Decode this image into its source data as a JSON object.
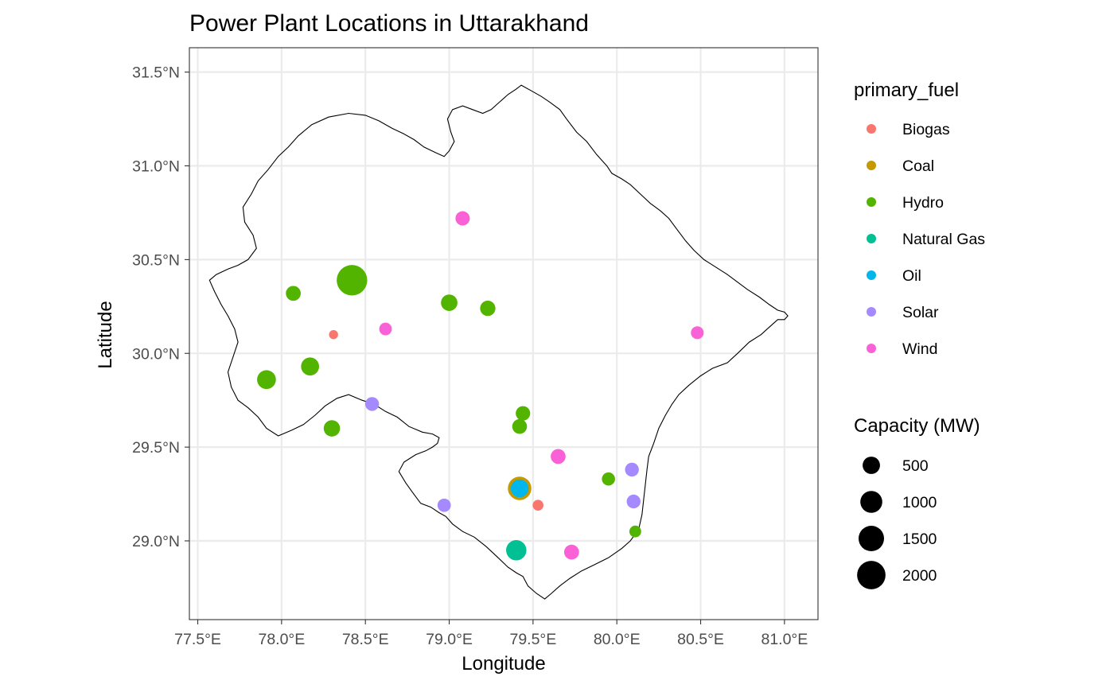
{
  "chart_data": {
    "type": "scatter",
    "title": "Power Plant Locations in Uttarakhand",
    "xlabel": "Longitude",
    "ylabel": "Latitude",
    "xlim": [
      77.45,
      81.2
    ],
    "ylim": [
      28.58,
      31.63
    ],
    "grid": true,
    "x_ticks": [
      {
        "value": 77.5,
        "label": "77.5°E"
      },
      {
        "value": 78.0,
        "label": "78.0°E"
      },
      {
        "value": 78.5,
        "label": "78.5°E"
      },
      {
        "value": 79.0,
        "label": "79.0°E"
      },
      {
        "value": 79.5,
        "label": "79.5°E"
      },
      {
        "value": 80.0,
        "label": "80.0°E"
      },
      {
        "value": 80.5,
        "label": "80.5°E"
      },
      {
        "value": 81.0,
        "label": "81.0°E"
      }
    ],
    "y_ticks": [
      {
        "value": 29.0,
        "label": "29.0°N"
      },
      {
        "value": 29.5,
        "label": "29.5°N"
      },
      {
        "value": 30.0,
        "label": "30.0°N"
      },
      {
        "value": 30.5,
        "label": "30.5°N"
      },
      {
        "value": 31.0,
        "label": "31.0°N"
      },
      {
        "value": 31.5,
        "label": "31.5°N"
      }
    ],
    "color_legend": {
      "title": "primary_fuel",
      "position": "right",
      "entries": [
        {
          "label": "Biogas",
          "color": "#F8766D"
        },
        {
          "label": "Coal",
          "color": "#C49A00"
        },
        {
          "label": "Hydro",
          "color": "#53B400"
        },
        {
          "label": "Natural Gas",
          "color": "#00C094"
        },
        {
          "label": "Oil",
          "color": "#00B6EB"
        },
        {
          "label": "Solar",
          "color": "#A58AFF"
        },
        {
          "label": "Wind",
          "color": "#FB61D7"
        }
      ]
    },
    "size_legend": {
      "title": "Capacity (MW)",
      "entries": [
        {
          "label": "500",
          "value": 500
        },
        {
          "label": "1000",
          "value": 1000
        },
        {
          "label": "1500",
          "value": 1500
        },
        {
          "label": "2000",
          "value": 2000
        }
      ]
    },
    "points": [
      {
        "lon": 78.42,
        "lat": 30.39,
        "fuel": "Hydro",
        "capacity": 2400
      },
      {
        "lon": 78.07,
        "lat": 30.32,
        "fuel": "Hydro",
        "capacity": 300
      },
      {
        "lon": 78.31,
        "lat": 30.1,
        "fuel": "Biogas",
        "capacity": 30
      },
      {
        "lon": 78.62,
        "lat": 30.13,
        "fuel": "Wind",
        "capacity": 160
      },
      {
        "lon": 79.0,
        "lat": 30.27,
        "fuel": "Hydro",
        "capacity": 420
      },
      {
        "lon": 79.23,
        "lat": 30.24,
        "fuel": "Hydro",
        "capacity": 330
      },
      {
        "lon": 79.08,
        "lat": 30.72,
        "fuel": "Wind",
        "capacity": 260
      },
      {
        "lon": 80.48,
        "lat": 30.11,
        "fuel": "Wind",
        "capacity": 170
      },
      {
        "lon": 77.91,
        "lat": 29.86,
        "fuel": "Hydro",
        "capacity": 640
      },
      {
        "lon": 78.17,
        "lat": 29.93,
        "fuel": "Hydro",
        "capacity": 560
      },
      {
        "lon": 78.54,
        "lat": 29.73,
        "fuel": "Solar",
        "capacity": 230
      },
      {
        "lon": 78.3,
        "lat": 29.6,
        "fuel": "Hydro",
        "capacity": 410
      },
      {
        "lon": 79.44,
        "lat": 29.68,
        "fuel": "Hydro",
        "capacity": 270
      },
      {
        "lon": 79.42,
        "lat": 29.61,
        "fuel": "Hydro",
        "capacity": 290
      },
      {
        "lon": 79.65,
        "lat": 29.45,
        "fuel": "Wind",
        "capacity": 300
      },
      {
        "lon": 80.09,
        "lat": 29.38,
        "fuel": "Solar",
        "capacity": 230
      },
      {
        "lon": 79.95,
        "lat": 29.33,
        "fuel": "Hydro",
        "capacity": 190
      },
      {
        "lon": 79.42,
        "lat": 29.28,
        "fuel": "Coal",
        "capacity": 1200
      },
      {
        "lon": 79.42,
        "lat": 29.28,
        "fuel": "Oil",
        "capacity": 540
      },
      {
        "lon": 79.53,
        "lat": 29.19,
        "fuel": "Biogas",
        "capacity": 80
      },
      {
        "lon": 80.1,
        "lat": 29.21,
        "fuel": "Solar",
        "capacity": 230
      },
      {
        "lon": 78.97,
        "lat": 29.19,
        "fuel": "Solar",
        "capacity": 200
      },
      {
        "lon": 80.11,
        "lat": 29.05,
        "fuel": "Hydro",
        "capacity": 120
      },
      {
        "lon": 79.4,
        "lat": 28.95,
        "fuel": "Natural Gas",
        "capacity": 800
      },
      {
        "lon": 79.73,
        "lat": 28.94,
        "fuel": "Wind",
        "capacity": 300
      }
    ],
    "boundary": [
      [
        79.43,
        31.43
      ],
      [
        79.49,
        31.4
      ],
      [
        79.55,
        31.37
      ],
      [
        79.6,
        31.34
      ],
      [
        79.66,
        31.3
      ],
      [
        79.7,
        31.25
      ],
      [
        79.76,
        31.18
      ],
      [
        79.82,
        31.13
      ],
      [
        79.88,
        31.06
      ],
      [
        79.94,
        31.0
      ],
      [
        79.97,
        30.96
      ],
      [
        80.03,
        30.93
      ],
      [
        80.08,
        30.9
      ],
      [
        80.14,
        30.85
      ],
      [
        80.2,
        30.8
      ],
      [
        80.26,
        30.76
      ],
      [
        80.31,
        30.72
      ],
      [
        80.36,
        30.66
      ],
      [
        80.41,
        30.6
      ],
      [
        80.46,
        30.55
      ],
      [
        80.52,
        30.5
      ],
      [
        80.59,
        30.46
      ],
      [
        80.66,
        30.42
      ],
      [
        80.72,
        30.38
      ],
      [
        80.78,
        30.34
      ],
      [
        80.85,
        30.3
      ],
      [
        80.91,
        30.26
      ],
      [
        80.96,
        30.23
      ],
      [
        81.0,
        30.22
      ],
      [
        81.02,
        30.2
      ],
      [
        81.0,
        30.18
      ],
      [
        80.96,
        30.18
      ],
      [
        80.91,
        30.14
      ],
      [
        80.86,
        30.1
      ],
      [
        80.79,
        30.06
      ],
      [
        80.72,
        30.0
      ],
      [
        80.66,
        29.95
      ],
      [
        80.57,
        29.92
      ],
      [
        80.5,
        29.88
      ],
      [
        80.43,
        29.83
      ],
      [
        80.37,
        29.78
      ],
      [
        80.33,
        29.73
      ],
      [
        80.29,
        29.67
      ],
      [
        80.25,
        29.6
      ],
      [
        80.22,
        29.52
      ],
      [
        80.19,
        29.45
      ],
      [
        80.18,
        29.38
      ],
      [
        80.17,
        29.3
      ],
      [
        80.16,
        29.22
      ],
      [
        80.15,
        29.14
      ],
      [
        80.13,
        29.06
      ],
      [
        80.08,
        29.0
      ],
      [
        80.03,
        28.96
      ],
      [
        79.95,
        28.91
      ],
      [
        79.86,
        28.87
      ],
      [
        79.79,
        28.84
      ],
      [
        79.72,
        28.8
      ],
      [
        79.66,
        28.76
      ],
      [
        79.61,
        28.72
      ],
      [
        79.57,
        28.69
      ],
      [
        79.52,
        28.72
      ],
      [
        79.47,
        28.76
      ],
      [
        79.44,
        28.81
      ],
      [
        79.4,
        28.83
      ],
      [
        79.35,
        28.86
      ],
      [
        79.28,
        28.92
      ],
      [
        79.22,
        28.97
      ],
      [
        79.15,
        29.02
      ],
      [
        79.08,
        29.05
      ],
      [
        79.02,
        29.09
      ],
      [
        78.98,
        29.13
      ],
      [
        78.94,
        29.15
      ],
      [
        78.89,
        29.18
      ],
      [
        78.83,
        29.2
      ],
      [
        78.78,
        29.26
      ],
      [
        78.74,
        29.31
      ],
      [
        78.7,
        29.37
      ],
      [
        78.73,
        29.42
      ],
      [
        78.8,
        29.46
      ],
      [
        78.86,
        29.48
      ],
      [
        78.9,
        29.5
      ],
      [
        78.93,
        29.52
      ],
      [
        78.94,
        29.55
      ],
      [
        78.9,
        29.57
      ],
      [
        78.84,
        29.58
      ],
      [
        78.76,
        29.61
      ],
      [
        78.69,
        29.66
      ],
      [
        78.62,
        29.69
      ],
      [
        78.55,
        29.73
      ],
      [
        78.48,
        29.75
      ],
      [
        78.4,
        29.78
      ],
      [
        78.33,
        29.76
      ],
      [
        78.26,
        29.72
      ],
      [
        78.2,
        29.67
      ],
      [
        78.13,
        29.62
      ],
      [
        78.06,
        29.59
      ],
      [
        77.98,
        29.56
      ],
      [
        77.91,
        29.6
      ],
      [
        77.86,
        29.66
      ],
      [
        77.8,
        29.71
      ],
      [
        77.74,
        29.75
      ],
      [
        77.7,
        29.82
      ],
      [
        77.68,
        29.9
      ],
      [
        77.71,
        29.98
      ],
      [
        77.74,
        30.06
      ],
      [
        77.72,
        30.13
      ],
      [
        77.68,
        30.2
      ],
      [
        77.64,
        30.26
      ],
      [
        77.6,
        30.33
      ],
      [
        77.57,
        30.39
      ],
      [
        77.61,
        30.42
      ],
      [
        77.68,
        30.45
      ],
      [
        77.74,
        30.47
      ],
      [
        77.8,
        30.5
      ],
      [
        77.85,
        30.56
      ],
      [
        77.83,
        30.63
      ],
      [
        77.78,
        30.7
      ],
      [
        77.77,
        30.78
      ],
      [
        77.82,
        30.85
      ],
      [
        77.86,
        30.92
      ],
      [
        77.92,
        30.98
      ],
      [
        77.98,
        31.05
      ],
      [
        78.04,
        31.1
      ],
      [
        78.1,
        31.16
      ],
      [
        78.18,
        31.22
      ],
      [
        78.28,
        31.26
      ],
      [
        78.4,
        31.28
      ],
      [
        78.5,
        31.27
      ],
      [
        78.58,
        31.24
      ],
      [
        78.66,
        31.2
      ],
      [
        78.73,
        31.17
      ],
      [
        78.79,
        31.14
      ],
      [
        78.85,
        31.1
      ],
      [
        78.92,
        31.07
      ],
      [
        78.97,
        31.05
      ],
      [
        79.0,
        31.08
      ],
      [
        79.03,
        31.13
      ],
      [
        79.01,
        31.18
      ],
      [
        78.99,
        31.25
      ],
      [
        79.02,
        31.3
      ],
      [
        79.08,
        31.32
      ],
      [
        79.14,
        31.3
      ],
      [
        79.2,
        31.28
      ],
      [
        79.25,
        31.3
      ],
      [
        79.3,
        31.34
      ],
      [
        79.35,
        31.38
      ],
      [
        79.4,
        31.41
      ],
      [
        79.43,
        31.43
      ]
    ]
  }
}
